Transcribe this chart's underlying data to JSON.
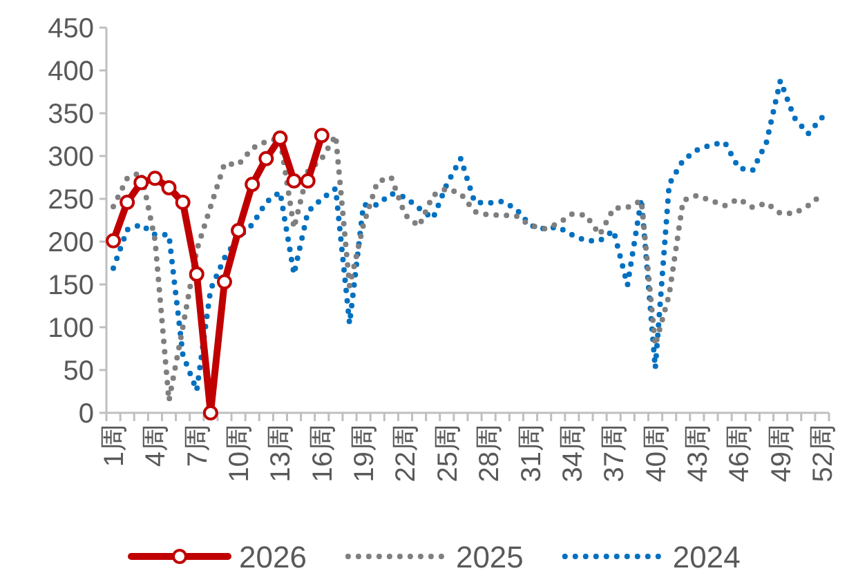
{
  "chart_data": {
    "type": "line",
    "categories": [
      "1周",
      null,
      null,
      "4周",
      null,
      null,
      "7周",
      null,
      null,
      "10周",
      null,
      null,
      "13周",
      null,
      null,
      "16周",
      null,
      null,
      "19周",
      null,
      null,
      "22周",
      null,
      null,
      "25周",
      null,
      null,
      "28周",
      null,
      null,
      "31周",
      null,
      null,
      "34周",
      null,
      null,
      "37周",
      null,
      null,
      "40周",
      null,
      null,
      "43周",
      null,
      null,
      "46周",
      null,
      null,
      "49周",
      null,
      null,
      "52周"
    ],
    "series": [
      {
        "name": "2026",
        "color": "#c00000",
        "marker": "circle",
        "line_style": "solid",
        "values": [
          201,
          246,
          269,
          274,
          263,
          246,
          162,
          0,
          153,
          213,
          267,
          297,
          321,
          271,
          271,
          324,
          null,
          null,
          null,
          null,
          null,
          null,
          null,
          null,
          null,
          null,
          null,
          null,
          null,
          null,
          null,
          null,
          null,
          null,
          null,
          null,
          null,
          null,
          null,
          null,
          null,
          null,
          null,
          null,
          null,
          null,
          null,
          null,
          null,
          null,
          null,
          null
        ]
      },
      {
        "name": "2025",
        "color": "#7f7f7f",
        "marker": "none",
        "line_style": "dotted",
        "values": [
          241,
          274,
          281,
          202,
          14,
          100,
          190,
          241,
          291,
          290,
          309,
          317,
          321,
          216,
          282,
          297,
          324,
          148,
          220,
          270,
          275,
          231,
          218,
          254,
          262,
          256,
          235,
          231,
          231,
          230,
          219,
          215,
          221,
          232,
          231,
          208,
          239,
          240,
          248,
          79,
          138,
          248,
          254,
          248,
          242,
          250,
          240,
          245,
          233,
          233,
          242,
          255
        ]
      },
      {
        "name": "2024",
        "color": "#0070c0",
        "marker": "none",
        "line_style": "dotted",
        "values": [
          169,
          214,
          220,
          208,
          208,
          68,
          26,
          144,
          181,
          205,
          220,
          246,
          258,
          162,
          235,
          250,
          262,
          104,
          243,
          243,
          256,
          252,
          239,
          227,
          267,
          297,
          246,
          245,
          247,
          238,
          219,
          215,
          217,
          208,
          201,
          201,
          213,
          149,
          250,
          52,
          267,
          295,
          307,
          313,
          316,
          286,
          283,
          316,
          388,
          345,
          326,
          345
        ]
      }
    ],
    "ylim": [
      0,
      450
    ],
    "yticks": [
      0,
      50,
      100,
      150,
      200,
      250,
      300,
      350,
      400,
      450
    ],
    "grid": false,
    "legend": "bottom"
  }
}
